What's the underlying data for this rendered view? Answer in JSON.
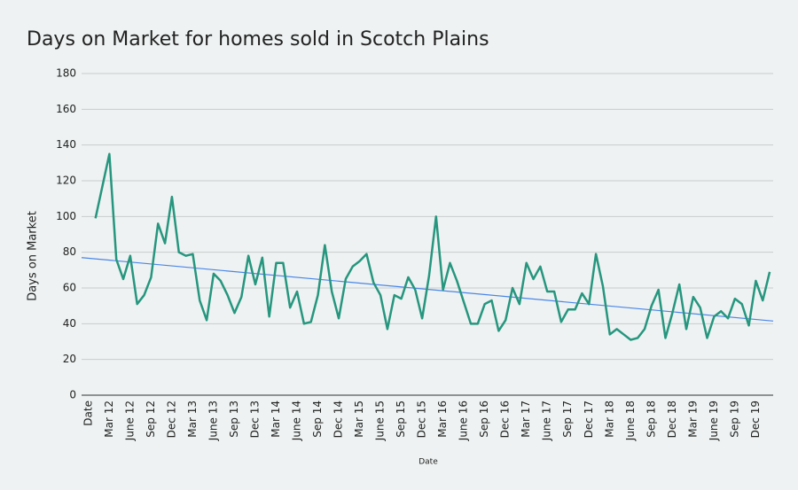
{
  "chart_data": {
    "type": "line",
    "title": "Days on Market for homes sold in Scotch Plains",
    "x_label": "Date",
    "y_label": "Days on Market",
    "categories": [
      "Date",
      null,
      null,
      "Mar 12",
      null,
      null,
      "June 12",
      null,
      null,
      "Sep 12",
      null,
      null,
      "Dec 12",
      null,
      null,
      "Mar 13",
      null,
      null,
      "June 13",
      null,
      null,
      "Sep 13",
      null,
      null,
      "Dec 13",
      null,
      null,
      "Mar 14",
      null,
      null,
      "June 14",
      null,
      null,
      "Sep 14",
      null,
      null,
      "Dec 14",
      null,
      null,
      "Mar 15",
      null,
      null,
      "June 15",
      null,
      null,
      "Sep 15",
      null,
      null,
      "Dec 15",
      null,
      null,
      "Mar 16",
      null,
      null,
      "June 16",
      null,
      null,
      "Sep 16",
      null,
      null,
      "Dec 16",
      null,
      null,
      "Mar 17",
      null,
      null,
      "June 17",
      null,
      null,
      "Sep 17",
      null,
      null,
      "Dec 17",
      null,
      null,
      "Mar 18",
      null,
      null,
      "June 18",
      null,
      null,
      "Sep 18",
      null,
      null,
      "Dec 18",
      null,
      null,
      "Mar 19",
      null,
      null,
      "June 19",
      null,
      null,
      "Sep 19",
      null,
      null,
      "Dec 19",
      null,
      null
    ],
    "series": [
      {
        "color": "#26967e",
        "values": [
          null,
          99,
          117,
          135,
          76,
          65,
          78,
          51,
          56,
          66,
          96,
          85,
          111,
          80,
          78,
          79,
          53,
          42,
          68,
          64,
          56,
          46,
          55,
          78,
          62,
          77,
          44,
          74,
          74,
          49,
          58,
          40,
          41,
          56,
          84,
          58,
          43,
          65,
          72,
          75,
          79,
          63,
          56,
          37,
          56,
          54,
          66,
          59,
          43,
          67,
          100,
          59,
          74,
          64,
          52,
          40,
          40,
          51,
          53,
          36,
          42,
          60,
          51,
          74,
          65,
          72,
          58,
          58,
          41,
          48,
          48,
          57,
          51,
          79,
          61,
          34,
          37,
          34,
          31,
          32,
          37,
          50,
          59,
          32,
          46,
          62,
          37,
          55,
          49,
          32,
          44,
          47,
          43,
          54,
          51,
          39,
          64,
          53,
          69
        ]
      }
    ],
    "trendline": {
      "color": "#4a86e8",
      "values": [
        77,
        41.5
      ]
    },
    "ylim": [
      0,
      180
    ],
    "yticks": [
      0,
      20,
      40,
      60,
      80,
      100,
      120,
      140,
      160,
      180
    ],
    "grid": true
  }
}
